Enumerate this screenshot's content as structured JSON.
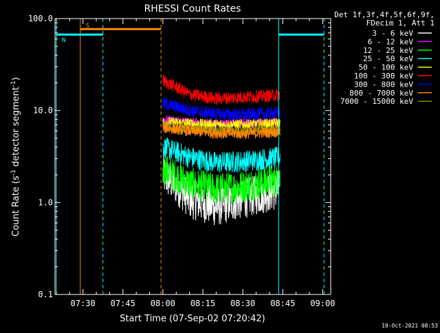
{
  "chart_data": {
    "type": "line",
    "title": "RHESSI Count Rates",
    "xlabel": "Start Time (07-Sep-02 07:20:42)",
    "ylabel_main": "Count Rate (s",
    "ylabel_sup1": "-1",
    "ylabel_mid": " detector segment",
    "ylabel_sup2": "-1",
    "ylabel_end": ")",
    "xlim_minutes": [
      439.5,
      543.0
    ],
    "ylim": [
      0.1,
      100.0
    ],
    "y_scale": "log",
    "x_ticks": [
      {
        "label": "07:30",
        "min": 450
      },
      {
        "label": "07:45",
        "min": 465
      },
      {
        "label": "08:00",
        "min": 480
      },
      {
        "label": "08:15",
        "min": 495
      },
      {
        "label": "08:30",
        "min": 510
      },
      {
        "label": "08:45",
        "min": 525
      },
      {
        "label": "09:00",
        "min": 540
      }
    ],
    "y_ticks": [
      {
        "label": "100.0",
        "v": 100.0
      },
      {
        "label": "10.0",
        "v": 10.0
      },
      {
        "label": "1.0",
        "v": 1.0
      },
      {
        "label": "0.1",
        "v": 0.1
      }
    ],
    "legend_header": [
      "Det 1f,3f,4f,5f,6f,9f,",
      "FDecim 1, Att 1"
    ],
    "legend_placement": "right",
    "data_window_minutes": [
      480.0,
      524.0
    ],
    "series": [
      {
        "name": "3 - 6 keV",
        "color": "#ffffff",
        "curve_min": [
          [
            480,
            2.0
          ],
          [
            490,
            1.1
          ],
          [
            500,
            0.9
          ],
          [
            510,
            1.1
          ],
          [
            520,
            1.3
          ],
          [
            524,
            1.4
          ]
        ]
      },
      {
        "name": "6 - 12 keV",
        "color": "#ff00ff",
        "curve_min": [
          [
            480,
            8.0
          ],
          [
            490,
            7.5
          ],
          [
            500,
            7.2
          ],
          [
            510,
            7.3
          ],
          [
            520,
            7.4
          ],
          [
            524,
            7.5
          ]
        ]
      },
      {
        "name": "12 - 25 keV",
        "color": "#00ff00",
        "curve_min": [
          [
            480,
            2.3
          ],
          [
            490,
            1.6
          ],
          [
            500,
            1.4
          ],
          [
            510,
            1.5
          ],
          [
            520,
            1.7
          ],
          [
            524,
            1.8
          ]
        ]
      },
      {
        "name": "25 - 50 keV",
        "color": "#00ffff",
        "curve_min": [
          [
            480,
            4.0
          ],
          [
            490,
            3.1
          ],
          [
            500,
            2.7
          ],
          [
            510,
            2.8
          ],
          [
            520,
            3.0
          ],
          [
            524,
            3.1
          ]
        ]
      },
      {
        "name": "50 - 100 keV",
        "color": "#ffff00",
        "curve_min": [
          [
            480,
            7.5
          ],
          [
            490,
            7.2
          ],
          [
            500,
            7.0
          ],
          [
            510,
            7.0
          ],
          [
            520,
            7.2
          ],
          [
            524,
            7.3
          ]
        ]
      },
      {
        "name": "100 - 300 keV",
        "color": "#ff0000",
        "curve_min": [
          [
            480,
            21.0
          ],
          [
            490,
            15.0
          ],
          [
            500,
            13.5
          ],
          [
            510,
            14.0
          ],
          [
            520,
            14.5
          ],
          [
            524,
            15.0
          ]
        ]
      },
      {
        "name": "300 - 800 keV",
        "color": "#0000ff",
        "curve_min": [
          [
            480,
            12.0
          ],
          [
            490,
            10.0
          ],
          [
            500,
            9.2
          ],
          [
            510,
            9.0
          ],
          [
            520,
            9.3
          ],
          [
            524,
            9.5
          ]
        ]
      },
      {
        "name": "800 - 7000 keV",
        "color": "#ff8800",
        "curve_min": [
          [
            480,
            6.5
          ],
          [
            490,
            6.0
          ],
          [
            500,
            5.7
          ],
          [
            510,
            5.6
          ],
          [
            520,
            5.8
          ],
          [
            524,
            5.9
          ]
        ]
      },
      {
        "name": "7000 - 15000 keV",
        "color": "#888800",
        "curve_min": [
          [
            480,
            6.8
          ],
          [
            490,
            6.3
          ],
          [
            500,
            6.0
          ],
          [
            510,
            6.0
          ],
          [
            520,
            6.2
          ],
          [
            524,
            6.3
          ]
        ]
      }
    ],
    "markers": [
      {
        "kind": "vline",
        "color": "#00ffff",
        "min": 440.0,
        "dashed": false
      },
      {
        "kind": "vline",
        "color": "#ff8800",
        "min": 449.0,
        "dashed": false
      },
      {
        "kind": "vline",
        "color": "#00ffff",
        "min": 457.5,
        "dashed": true
      },
      {
        "kind": "vline",
        "color": "#ff8800",
        "min": 479.3,
        "dashed": true
      },
      {
        "kind": "vline",
        "color": "#00ffff",
        "min": 523.5,
        "dashed": false
      },
      {
        "kind": "vline",
        "color": "#00ffff",
        "min": 540.5,
        "dashed": true
      }
    ],
    "bars": [
      {
        "color": "#ff8800",
        "label": "S",
        "from": 449.0,
        "to": 479.3,
        "y": 77.0
      },
      {
        "color": "#00ffff",
        "label": "N",
        "from": 440.0,
        "to": 457.5,
        "y": 67.0
      },
      {
        "color": "#00ffff",
        "label": "",
        "from": 523.5,
        "to": 540.5,
        "y": 67.0
      }
    ],
    "timestamp": "19-Oct-2021 08:53"
  }
}
